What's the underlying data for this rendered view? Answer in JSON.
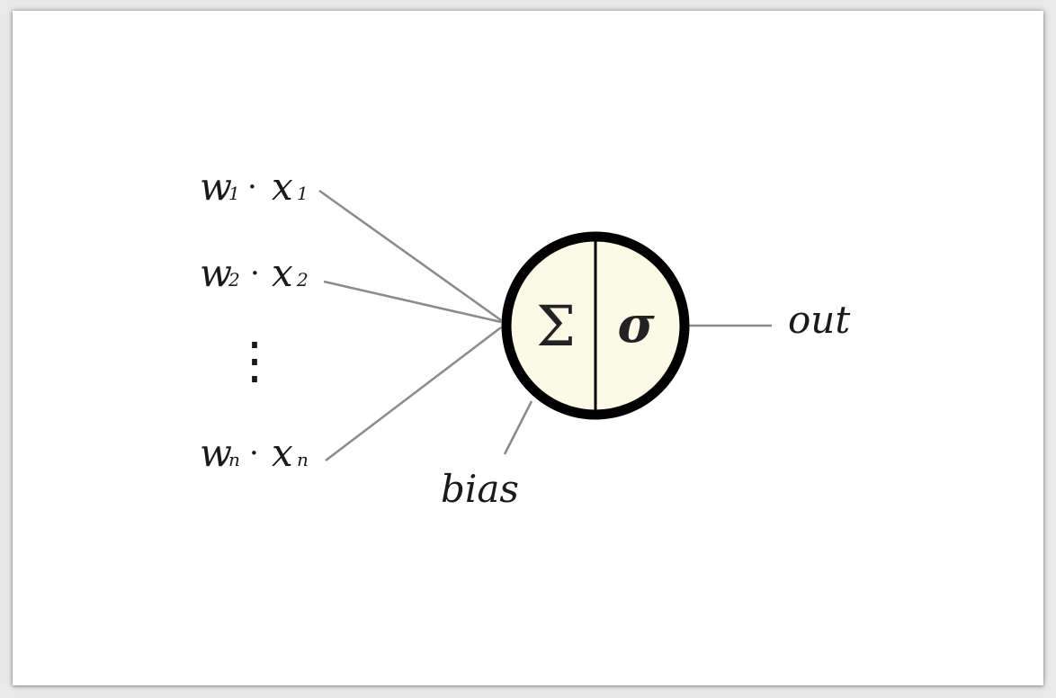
{
  "inputs": [
    {
      "w": "w",
      "w_sub": "1",
      "dot": "·",
      "x": "x",
      "x_sub": "1"
    },
    {
      "w": "w",
      "w_sub": "2",
      "dot": "·",
      "x": "x",
      "x_sub": "2"
    },
    {
      "w": "w",
      "w_sub": "n",
      "dot": "·",
      "x": "x",
      "x_sub": "n"
    }
  ],
  "ellipsis": "⋮",
  "neuron": {
    "sum_symbol": "Σ",
    "activation_symbol": "σ",
    "fill_color": "#fafae6",
    "border_color": "#000000"
  },
  "bias_label": "bias",
  "output_label": "out",
  "line_color": "#8a8a8a"
}
